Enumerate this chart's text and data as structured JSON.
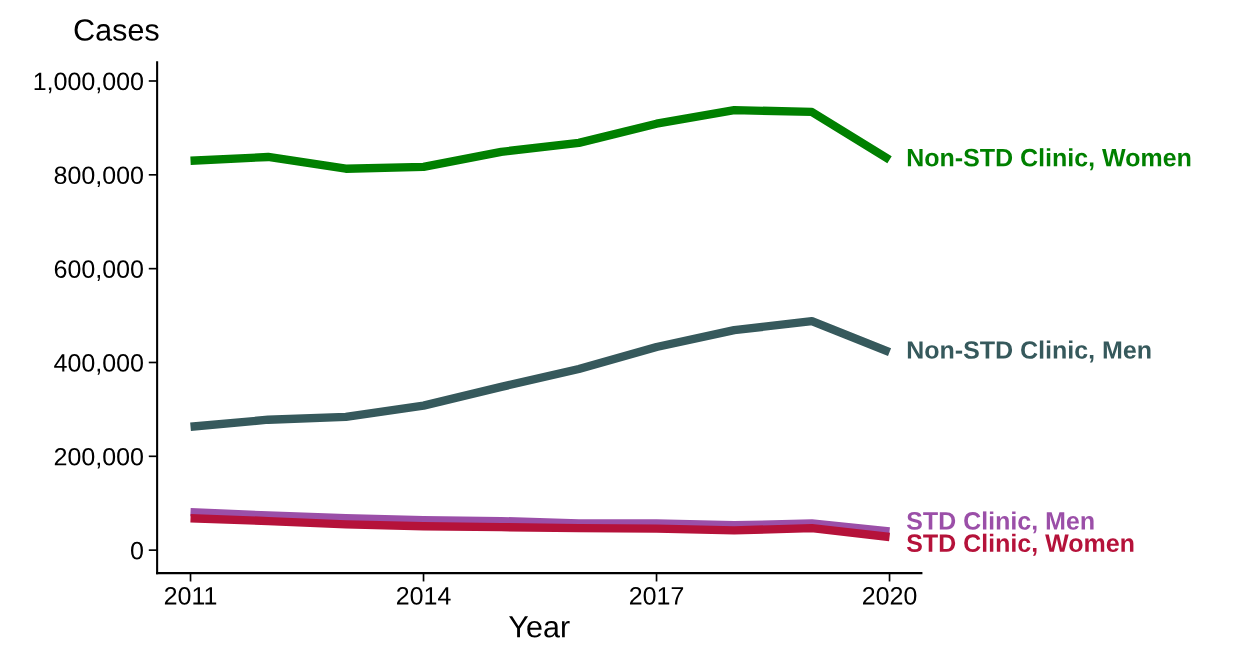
{
  "chart_data": {
    "type": "line",
    "ylabel": "Cases",
    "xlabel": "Year",
    "x": [
      2011,
      2012,
      2013,
      2014,
      2015,
      2016,
      2017,
      2018,
      2019,
      2020
    ],
    "series": [
      {
        "name": "Non-STD Clinic, Women",
        "color": "#008000",
        "values": [
          830000,
          838000,
          813000,
          817000,
          849000,
          868000,
          909000,
          938000,
          934000,
          832000
        ]
      },
      {
        "name": "Non-STD Clinic, Men",
        "color": "#36595c",
        "values": [
          263000,
          278000,
          284000,
          308000,
          348000,
          386000,
          433000,
          469000,
          488000,
          422000
        ]
      },
      {
        "name": "STD Clinic, Men",
        "color": "#9b4fa8",
        "values": [
          81000,
          74000,
          68000,
          64000,
          62000,
          57000,
          57000,
          53000,
          57000,
          40000
        ]
      },
      {
        "name": "STD Clinic, Women",
        "color": "#b5123a",
        "values": [
          68000,
          62000,
          55000,
          51000,
          49000,
          47000,
          46000,
          42000,
          47000,
          28000
        ]
      }
    ],
    "xlim": [
      2010.57,
      2020.41
    ],
    "xticks": [
      2011,
      2014,
      2017,
      2020
    ],
    "ylim": [
      -49000,
      1040000
    ],
    "yticks": [
      {
        "value": 0,
        "label": "0"
      },
      {
        "value": 200000,
        "label": "200,000"
      },
      {
        "value": 400000,
        "label": "400,000"
      },
      {
        "value": 600000,
        "label": "600,000"
      },
      {
        "value": 800000,
        "label": "800,000"
      },
      {
        "value": 1000000,
        "label": "1,000,000"
      }
    ],
    "grid": false,
    "legend": false,
    "marker": "none",
    "line_style": "solid"
  }
}
